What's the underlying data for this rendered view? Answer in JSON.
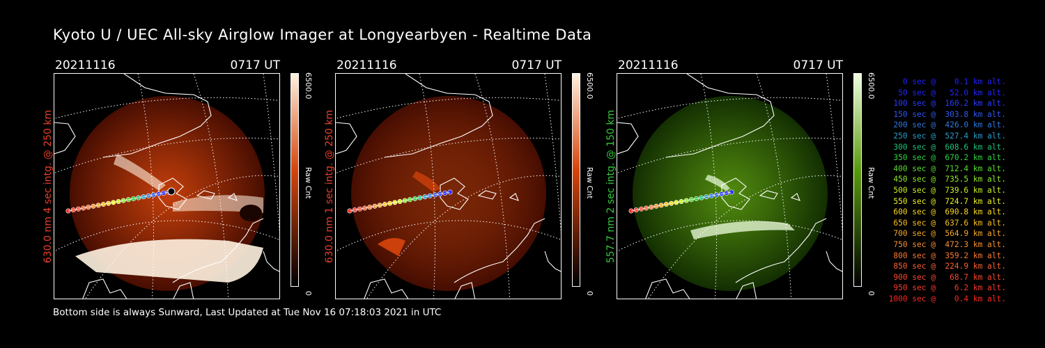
{
  "title": "Kyoto U / UEC All-sky Airglow Imager at Longyearbyen - Realtime Data",
  "footer": "Bottom side is always Sunward, Last Updated at Tue Nov 16 07:18:03 2021 in UTC",
  "panels": [
    {
      "date": "20211116",
      "time": "0717 UT",
      "ylabel": "630.0 nm 4 sec intg. @ 250 km",
      "label_color": "#e8402a",
      "colorbar_max": "6500.0",
      "colorbar_unit": "Raw Cnt",
      "colorbar_min": "0",
      "color_high": "#fff2e0",
      "color_mid": "#d8450c",
      "color_low": "#3a0800"
    },
    {
      "date": "20211116",
      "time": "0717 UT",
      "ylabel": "630.0 nm 1 sec intg. @ 250 km",
      "label_color": "#e8402a",
      "colorbar_max": "6500.0",
      "colorbar_unit": "Raw Cnt",
      "colorbar_min": "0",
      "color_high": "#fff2e0",
      "color_mid": "#d8450c",
      "color_low": "#3a0800"
    },
    {
      "date": "20211116",
      "time": "0717 UT",
      "ylabel": "557.7 nm 2 sec intg. @ 150 km",
      "label_color": "#35c93a",
      "colorbar_max": "6500.0",
      "colorbar_unit": "Raw Cnt",
      "colorbar_min": "0",
      "color_high": "#f0ffe0",
      "color_mid": "#5a9a10",
      "color_low": "#0c2400"
    }
  ],
  "legend": [
    {
      "text": "0 sec @    0.1 km alt.",
      "color": "#2020ff"
    },
    {
      "text": "50 sec @   52.0 km alt.",
      "color": "#2424ff"
    },
    {
      "text": "100 sec @  160.2 km alt.",
      "color": "#2a3cff"
    },
    {
      "text": "150 sec @  303.8 km alt.",
      "color": "#2e58f0"
    },
    {
      "text": "200 sec @  426.0 km alt.",
      "color": "#2e78e0"
    },
    {
      "text": "250 sec @  527.4 km alt.",
      "color": "#2a9ac8"
    },
    {
      "text": "300 sec @  608.6 km alt.",
      "color": "#22c07a"
    },
    {
      "text": "350 sec @  670.2 km alt.",
      "color": "#30d040"
    },
    {
      "text": "400 sec @  712.4 km alt.",
      "color": "#58dc30"
    },
    {
      "text": "450 sec @  735.5 km alt.",
      "color": "#90e828"
    },
    {
      "text": "500 sec @  739.6 km alt.",
      "color": "#c8f020"
    },
    {
      "text": "550 sec @  724.7 km alt.",
      "color": "#ecf020"
    },
    {
      "text": "600 sec @  690.8 km alt.",
      "color": "#f8d820"
    },
    {
      "text": "650 sec @  637.6 km alt.",
      "color": "#f8c020"
    },
    {
      "text": "700 sec @  564.9 km alt.",
      "color": "#f8a828"
    },
    {
      "text": "750 sec @  472.3 km alt.",
      "color": "#f89030"
    },
    {
      "text": "800 sec @  359.2 km alt.",
      "color": "#f87830"
    },
    {
      "text": "850 sec @  224.9 km alt.",
      "color": "#f86030"
    },
    {
      "text": "900 sec @   68.7 km alt.",
      "color": "#f84830"
    },
    {
      "text": "950 sec @    6.2 km alt.",
      "color": "#f83a2a"
    },
    {
      "text": "1000 sec @    0.4 km alt.",
      "color": "#f82a20"
    }
  ]
}
